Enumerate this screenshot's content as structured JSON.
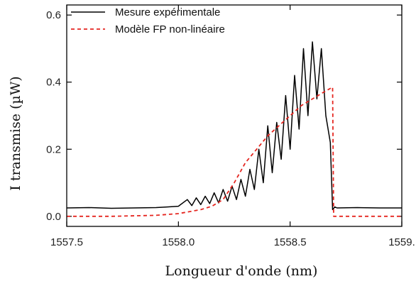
{
  "chart_data": {
    "type": "line",
    "title": "",
    "xlabel": "Longueur d'onde (nm)",
    "ylabel": "I transmise (µW)",
    "xlim": [
      1557.5,
      1559.0
    ],
    "ylim": [
      -0.03,
      0.63
    ],
    "x_ticks": [
      1557.5,
      1558.0,
      1558.5,
      1559.0
    ],
    "x_tick_labels": [
      "1557.5",
      "1558.0",
      "1558.5",
      "1559."
    ],
    "y_ticks": [
      0.0,
      0.2,
      0.4,
      0.6
    ],
    "y_tick_labels": [
      "0.0",
      "0.2",
      "0.4",
      "0.6"
    ],
    "grid": false,
    "legend_position": "top-left",
    "series": [
      {
        "name": "Mesure expérimentale",
        "color": "#000000",
        "style": "solid",
        "x": [
          1557.5,
          1557.6,
          1557.7,
          1557.8,
          1557.9,
          1557.95,
          1558.0,
          1558.04,
          1558.06,
          1558.08,
          1558.1,
          1558.12,
          1558.14,
          1558.16,
          1558.18,
          1558.2,
          1558.22,
          1558.24,
          1558.26,
          1558.28,
          1558.3,
          1558.32,
          1558.34,
          1558.36,
          1558.38,
          1558.4,
          1558.42,
          1558.44,
          1558.46,
          1558.48,
          1558.5,
          1558.52,
          1558.54,
          1558.56,
          1558.58,
          1558.6,
          1558.62,
          1558.64,
          1558.66,
          1558.68,
          1558.69,
          1558.7,
          1558.71,
          1558.8,
          1558.9,
          1559.0
        ],
        "y": [
          0.025,
          0.026,
          0.024,
          0.025,
          0.026,
          0.028,
          0.03,
          0.05,
          0.032,
          0.055,
          0.035,
          0.06,
          0.038,
          0.07,
          0.04,
          0.08,
          0.045,
          0.09,
          0.05,
          0.11,
          0.06,
          0.14,
          0.08,
          0.2,
          0.1,
          0.27,
          0.13,
          0.28,
          0.17,
          0.36,
          0.2,
          0.42,
          0.26,
          0.5,
          0.3,
          0.52,
          0.35,
          0.5,
          0.3,
          0.22,
          0.02,
          0.028,
          0.025,
          0.026,
          0.025,
          0.025
        ]
      },
      {
        "name": "Modèle FP non-linéaire",
        "color": "#e52620",
        "style": "dashed",
        "x": [
          1557.5,
          1557.7,
          1557.9,
          1558.0,
          1558.1,
          1558.15,
          1558.2,
          1558.25,
          1558.3,
          1558.35,
          1558.4,
          1558.45,
          1558.5,
          1558.55,
          1558.6,
          1558.65,
          1558.69,
          1558.695,
          1558.71,
          1558.8,
          1558.9,
          1559.0
        ],
        "y": [
          0.0,
          0.0,
          0.003,
          0.008,
          0.02,
          0.03,
          0.05,
          0.1,
          0.16,
          0.2,
          0.24,
          0.27,
          0.3,
          0.33,
          0.35,
          0.37,
          0.385,
          0.0,
          0.0,
          0.0,
          0.0,
          0.0
        ]
      }
    ]
  }
}
